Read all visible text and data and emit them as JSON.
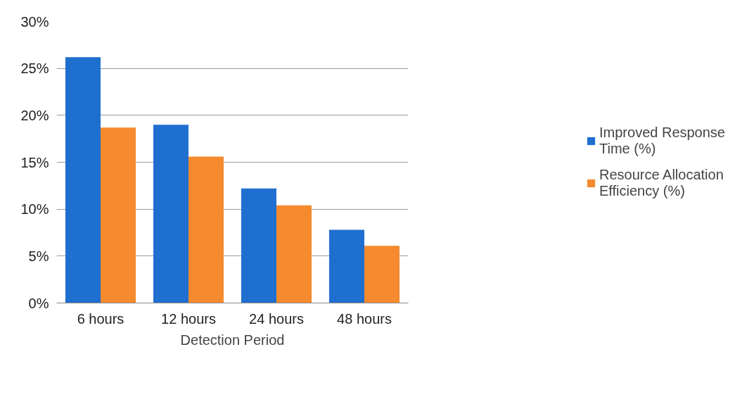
{
  "chart_data": {
    "type": "bar",
    "xlabel": "Detection Period",
    "categories": [
      "6 hours",
      "12 hours",
      "24 hours",
      "48 hours"
    ],
    "series": [
      {
        "name": "Improved Response Time (%)",
        "color": "#1f6fd0",
        "values": [
          26.2,
          19.0,
          12.2,
          7.8
        ]
      },
      {
        "name": "Resource Allocation Efficiency (%)",
        "color": "#f58a2e",
        "values": [
          18.7,
          15.6,
          10.4,
          6.1
        ]
      }
    ],
    "ylim": [
      0,
      30
    ],
    "yticks": [
      {
        "value": 0,
        "label": "0%"
      },
      {
        "value": 5,
        "label": "5%"
      },
      {
        "value": 10,
        "label": "10%"
      },
      {
        "value": 15,
        "label": "15%"
      },
      {
        "value": 20,
        "label": "20%"
      },
      {
        "value": 25,
        "label": "25%"
      },
      {
        "value": 30,
        "label": "30%"
      }
    ],
    "grid": "y",
    "legend": "right"
  }
}
